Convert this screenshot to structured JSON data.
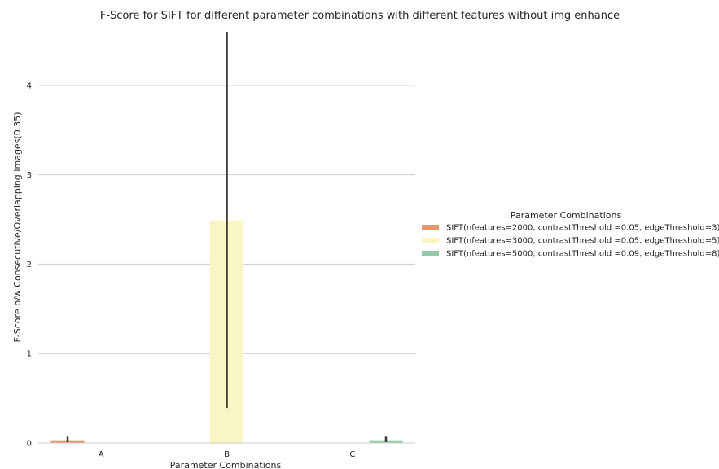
{
  "chart_data": {
    "type": "bar",
    "title": "F-Score for SIFT for different parameter combinations with different features without img enhance",
    "xlabel": "Parameter Combinations",
    "ylabel": "F-Score b/w Consecutive/Overlapping Images(0.35)",
    "categories": [
      "A",
      "B",
      "C"
    ],
    "ylim": [
      0,
      4.6
    ],
    "yticks": [
      0,
      1,
      2,
      3,
      4
    ],
    "grid": true,
    "legend": {
      "title": "Parameter Combinations",
      "placement": "center-right"
    },
    "series": [
      {
        "name": "SIFT(nfeatures=2000, contrastThreshold =0.05, edgeThreshold=3)",
        "color": "#e8956b",
        "values": [
          0.03,
          0,
          0
        ],
        "ci_low": [
          0.01,
          null,
          null
        ],
        "ci_high": [
          0.07,
          null,
          null
        ]
      },
      {
        "name": "SIFT(nfeatures=3000, contrastThreshold =0.05, edgeThreshold=5)",
        "color": "#faf6c3",
        "values": [
          0,
          2.49,
          0
        ],
        "ci_low": [
          null,
          0.39,
          null
        ],
        "ci_high": [
          null,
          4.6,
          null
        ]
      },
      {
        "name": "SIFT(nfeatures=5000, contrastThreshold =0.09, edgeThreshold=8)",
        "color": "#93c9a6",
        "values": [
          0,
          0,
          0.03
        ],
        "ci_low": [
          null,
          null,
          0.01
        ],
        "ci_high": [
          null,
          null,
          0.07
        ]
      }
    ]
  }
}
